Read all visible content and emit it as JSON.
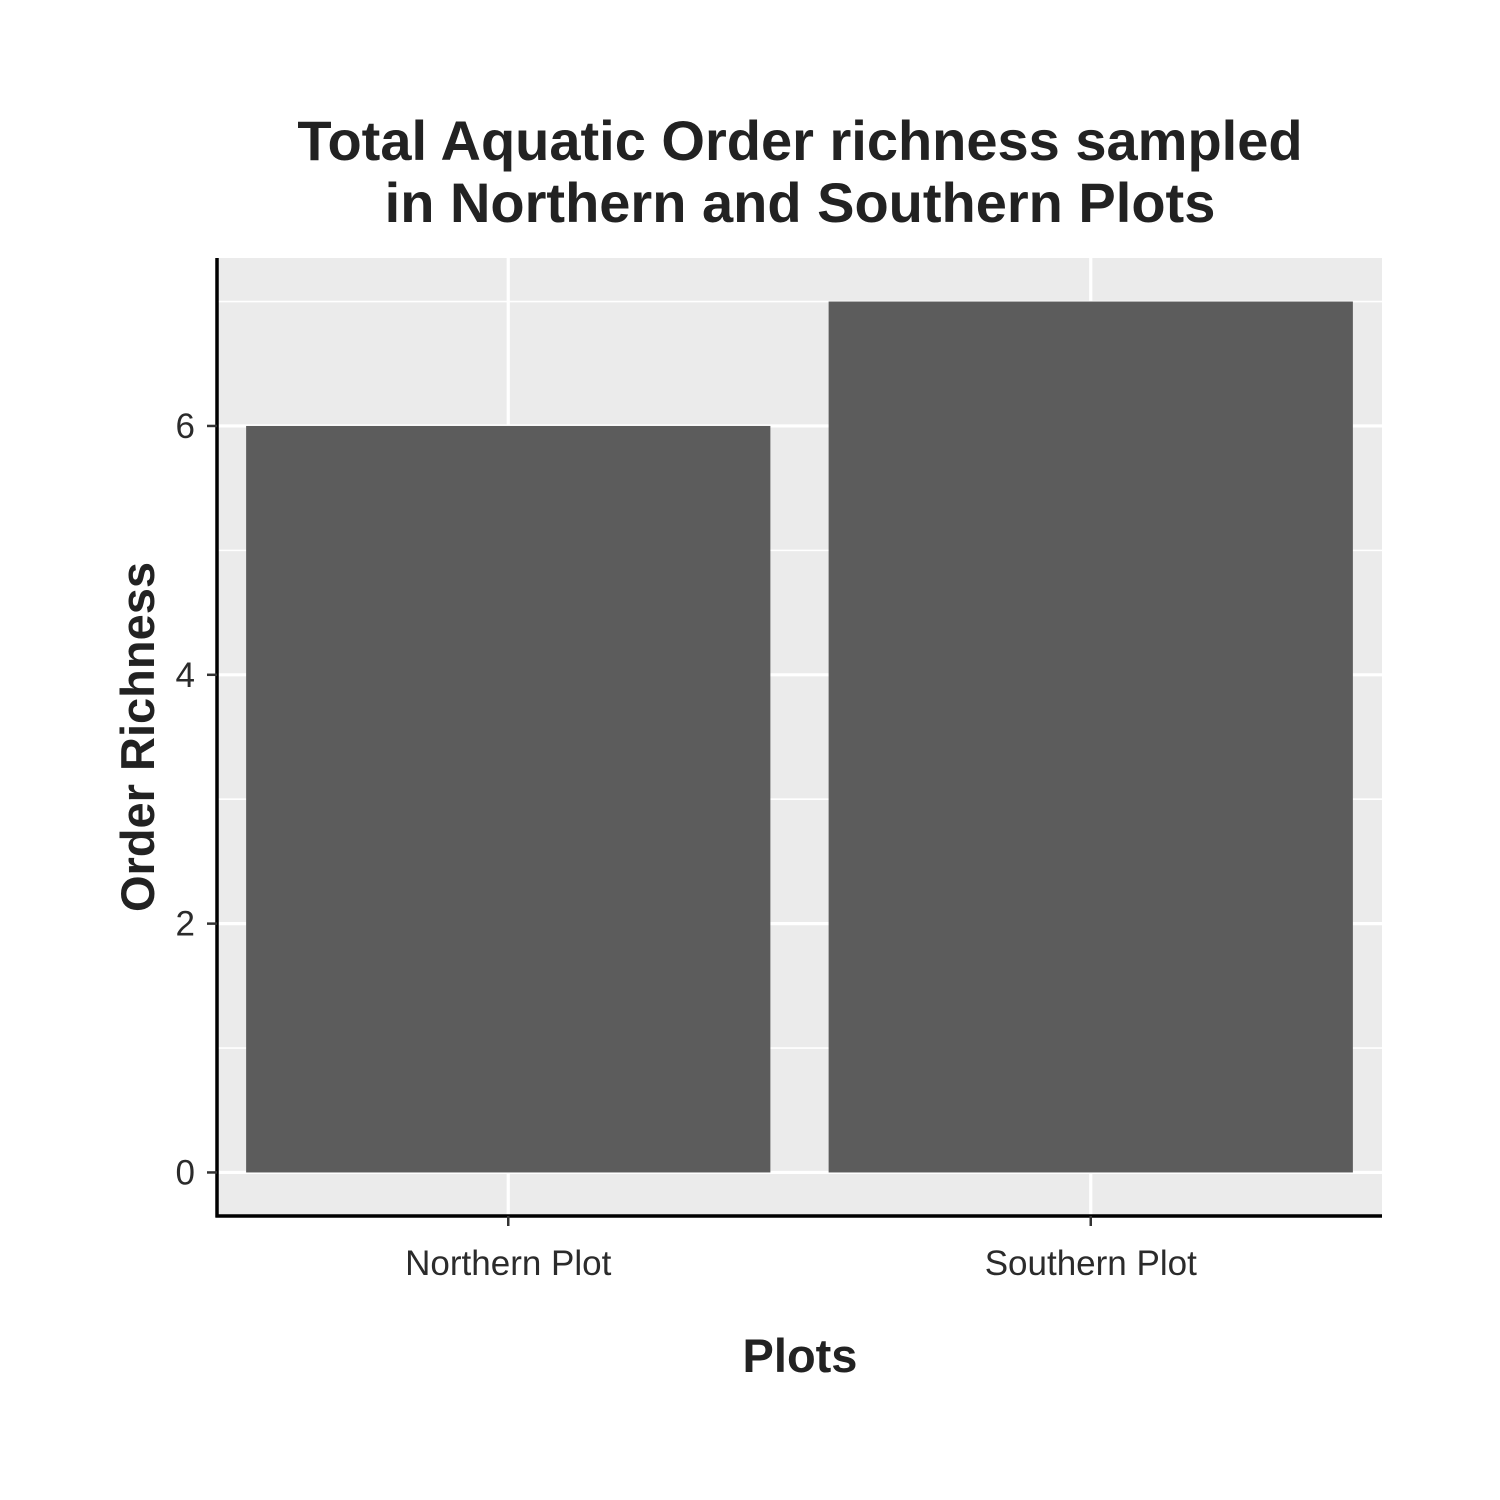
{
  "chart_data": {
    "type": "bar",
    "title_lines": [
      "Total Aquatic Order richness sampled",
      "in Northern and Southern Plots"
    ],
    "xlabel": "Plots",
    "ylabel": "Order Richness",
    "categories": [
      "Northern Plot",
      "Southern Plot"
    ],
    "values": [
      6,
      7
    ],
    "ylim": [
      -0.35,
      7.35
    ],
    "yticks": [
      0,
      2,
      4,
      6
    ],
    "yticks_minor": [
      1,
      3,
      5,
      7
    ],
    "grid": true,
    "legend": "none",
    "colors": {
      "panel": "#ebebeb",
      "grid": "#ffffff",
      "bar": "#595959",
      "axis": "#000000",
      "text": "#222222"
    }
  }
}
